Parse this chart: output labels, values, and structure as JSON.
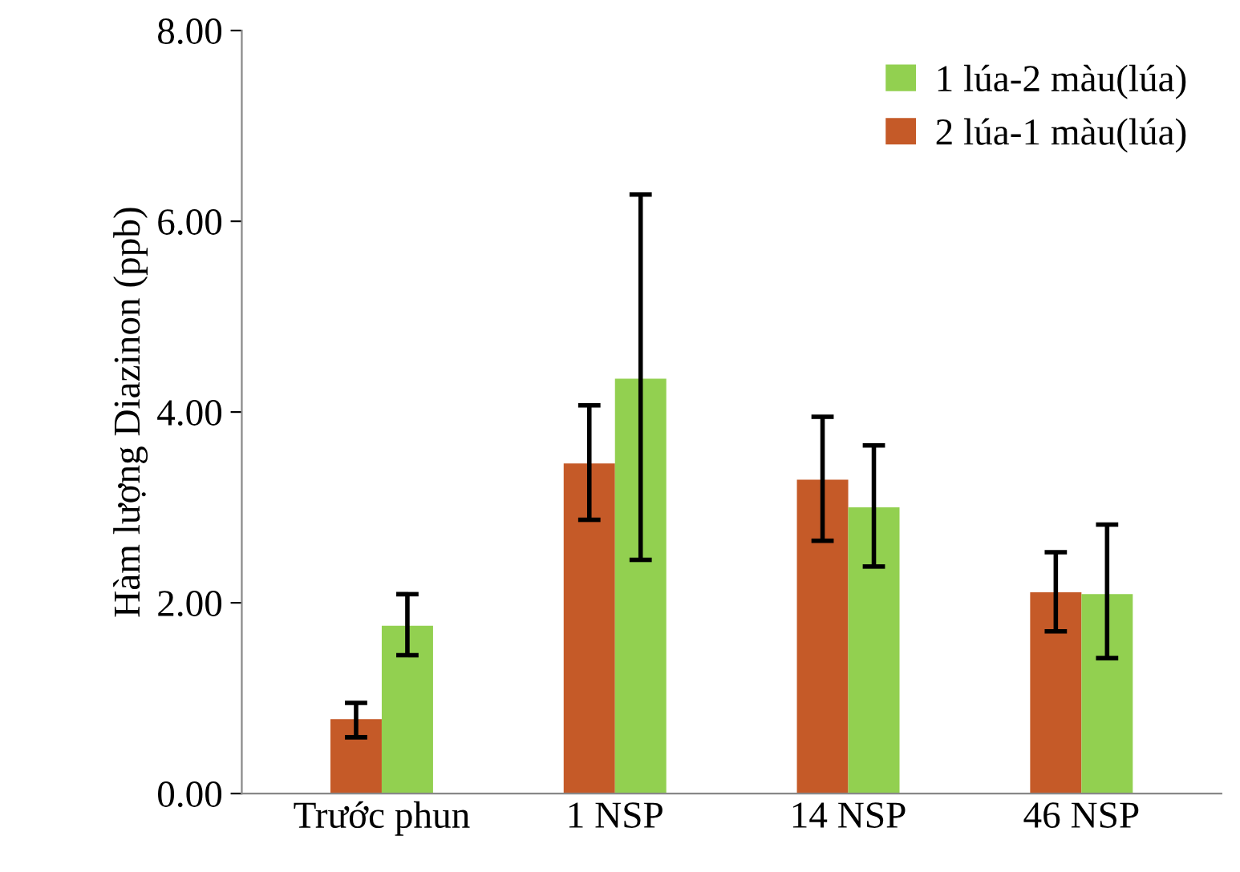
{
  "chart_data": {
    "type": "bar",
    "ylabel": "Hàm lượng Diazinon (ppb)",
    "categories": [
      "Trước phun",
      "1 NSP",
      "14 NSP",
      "46 NSP"
    ],
    "series": [
      {
        "name": "2 lúa-1 màu(lúa)",
        "color": "#c55a28",
        "values": [
          0.78,
          3.46,
          3.29,
          2.11
        ],
        "errors": [
          [
            0.59,
            0.95
          ],
          [
            2.87,
            4.07
          ],
          [
            2.65,
            3.95
          ],
          [
            1.7,
            2.53
          ]
        ]
      },
      {
        "name": "1 lúa-2 màu(lúa)",
        "color": "#92d050",
        "values": [
          1.76,
          4.35,
          3.0,
          2.09
        ],
        "errors": [
          [
            1.45,
            2.09
          ],
          [
            2.45,
            6.28
          ],
          [
            2.38,
            3.65
          ],
          [
            1.42,
            2.82
          ]
        ]
      }
    ],
    "ylim": [
      0,
      8
    ],
    "yticks": [
      {
        "value": 0,
        "label": "0.00"
      },
      {
        "value": 2,
        "label": "2.00"
      },
      {
        "value": 4,
        "label": "4.00"
      },
      {
        "value": 6,
        "label": "6.00"
      },
      {
        "value": 8,
        "label": "8.00"
      }
    ],
    "grid": false,
    "legend": "top right"
  }
}
